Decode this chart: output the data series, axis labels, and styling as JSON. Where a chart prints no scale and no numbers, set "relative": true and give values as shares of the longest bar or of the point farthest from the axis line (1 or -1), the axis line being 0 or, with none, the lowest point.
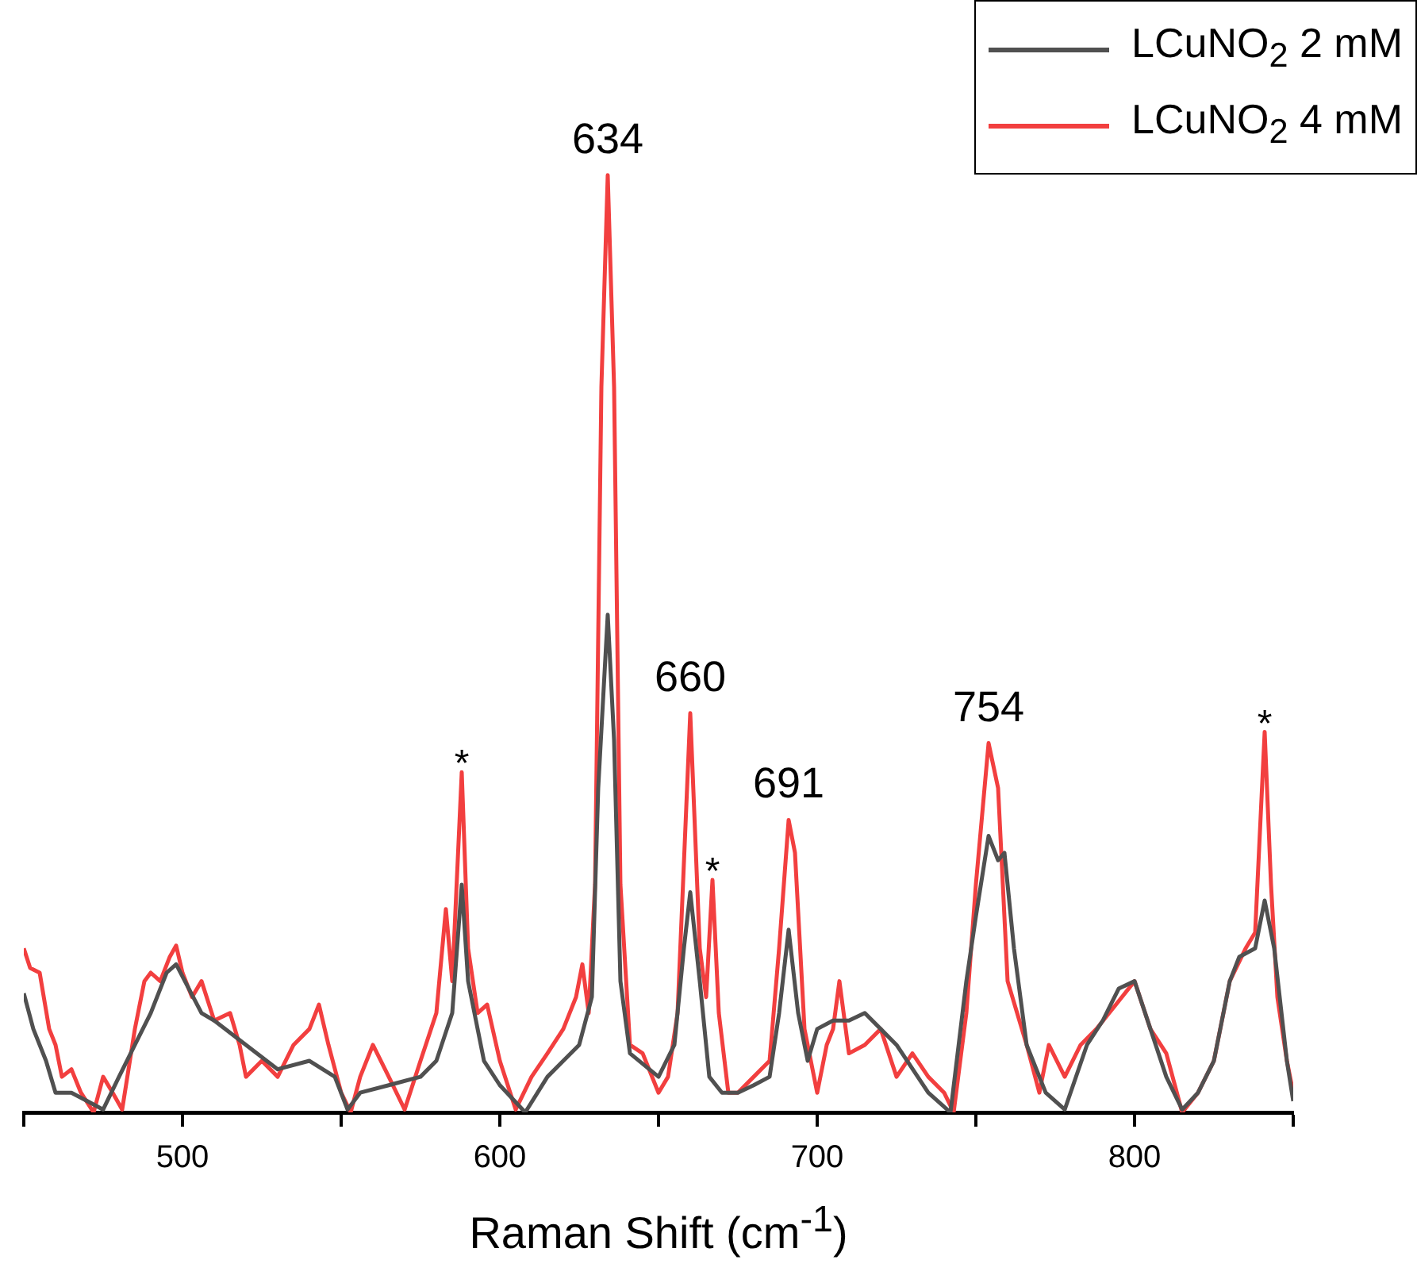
{
  "chart_data": {
    "type": "line",
    "relative": true,
    "xlabel": "Raman Shift (cm$^{-1}$)",
    "xlim": [
      450,
      850
    ],
    "xticks": [
      {
        "value": 450,
        "label": null
      },
      500,
      {
        "value": 550,
        "label": null
      },
      600,
      {
        "value": 650,
        "label": null
      },
      700,
      {
        "value": 750,
        "label": null
      },
      800,
      {
        "value": 850,
        "label": null
      }
    ],
    "grid": false,
    "legend": "top right",
    "marker": "none",
    "line_style": "solid",
    "annotations": [
      {
        "text": "634",
        "x": 634,
        "y": 1.0
      },
      {
        "text": "660",
        "x": 660,
        "y": 0.426
      },
      {
        "text": "691",
        "x": 691,
        "y": 0.312
      },
      {
        "text": "754",
        "x": 754,
        "y": 0.394
      },
      {
        "text": "*",
        "x": 588,
        "y": 0.363
      },
      {
        "text": "*",
        "x": 667,
        "y": 0.248
      },
      {
        "text": "*",
        "x": 841,
        "y": 0.406
      }
    ],
    "series": [
      {
        "name": "LCuNO$_{2}$ 2 mM",
        "color": "#505050",
        "x": [
          450,
          453,
          457,
          460,
          465,
          470,
          475,
          480,
          485,
          490,
          495,
          498,
          502,
          506,
          510,
          520,
          530,
          540,
          548,
          552,
          556,
          565,
          575,
          580,
          585,
          588,
          590,
          595,
          600,
          608,
          615,
          620,
          625,
          629,
          631,
          634,
          636,
          638,
          641,
          650,
          655,
          658,
          660,
          663,
          666,
          670,
          675,
          680,
          685,
          688,
          691,
          694,
          697,
          700,
          705,
          710,
          715,
          720,
          725,
          735,
          742,
          747,
          750,
          754,
          757,
          759,
          762,
          766,
          772,
          778,
          785,
          790,
          795,
          800,
          805,
          810,
          815,
          820,
          825,
          830,
          833,
          838,
          841,
          844,
          848,
          850
        ],
        "values": [
          0.127,
          0.089,
          0.055,
          0.021,
          0.021,
          0.012,
          0.003,
          0.038,
          0.072,
          0.106,
          0.149,
          0.158,
          0.132,
          0.106,
          0.098,
          0.072,
          0.046,
          0.055,
          0.038,
          0.003,
          0.021,
          0.029,
          0.038,
          0.055,
          0.106,
          0.243,
          0.14,
          0.055,
          0.029,
          0,
          0.038,
          0.055,
          0.072,
          0.123,
          0.346,
          0.531,
          0.397,
          0.14,
          0.063,
          0.038,
          0.072,
          0.175,
          0.235,
          0.14,
          0.038,
          0.021,
          0.021,
          0.029,
          0.038,
          0.106,
          0.195,
          0.106,
          0.055,
          0.089,
          0.098,
          0.098,
          0.106,
          0.089,
          0.072,
          0.021,
          0,
          0.14,
          0.209,
          0.295,
          0.269,
          0.277,
          0.175,
          0.072,
          0.021,
          0.003,
          0.072,
          0.098,
          0.132,
          0.14,
          0.089,
          0.038,
          0.003,
          0.021,
          0.055,
          0.14,
          0.166,
          0.175,
          0.226,
          0.175,
          0.055,
          0.012
        ]
      },
      {
        "name": "LCuNO$_{2}$ 4 mM",
        "color": "#f23f3f",
        "x": [
          450,
          452,
          455,
          458,
          460,
          462,
          465,
          468,
          472,
          475,
          478,
          481,
          485,
          488,
          490,
          493,
          496,
          498,
          500,
          503,
          506,
          510,
          515,
          518,
          520,
          525,
          530,
          535,
          540,
          543,
          546,
          550,
          553,
          556,
          560,
          565,
          570,
          575,
          580,
          583,
          585,
          588,
          590,
          593,
          596,
          600,
          605,
          610,
          615,
          620,
          624,
          626,
          628,
          630,
          632,
          634,
          636,
          638,
          641,
          645,
          650,
          653,
          656,
          660,
          663,
          665,
          667,
          669,
          672,
          675,
          680,
          685,
          688,
          691,
          693,
          696,
          700,
          703,
          705,
          707,
          710,
          715,
          720,
          725,
          730,
          735,
          740,
          743,
          747,
          750,
          754,
          757,
          760,
          763,
          766,
          770,
          773,
          778,
          783,
          788,
          792,
          796,
          800,
          805,
          810,
          815,
          820,
          825,
          830,
          835,
          838,
          841,
          843,
          845,
          848,
          850
        ],
        "values": [
          0.175,
          0.154,
          0.149,
          0.089,
          0.072,
          0.038,
          0.046,
          0.021,
          0,
          0.038,
          0.021,
          0.003,
          0.089,
          0.14,
          0.149,
          0.14,
          0.166,
          0.178,
          0.149,
          0.123,
          0.14,
          0.098,
          0.106,
          0.072,
          0.038,
          0.055,
          0.038,
          0.072,
          0.089,
          0.115,
          0.072,
          0.021,
          0,
          0.038,
          0.072,
          0.038,
          0.003,
          0.055,
          0.106,
          0.217,
          0.14,
          0.363,
          0.175,
          0.106,
          0.115,
          0.055,
          0.003,
          0.038,
          0.063,
          0.089,
          0.123,
          0.158,
          0.106,
          0.243,
          0.774,
          1.0,
          0.774,
          0.243,
          0.072,
          0.063,
          0.021,
          0.038,
          0.106,
          0.426,
          0.175,
          0.123,
          0.248,
          0.106,
          0.021,
          0.021,
          0.038,
          0.055,
          0.175,
          0.312,
          0.277,
          0.089,
          0.021,
          0.072,
          0.089,
          0.14,
          0.063,
          0.072,
          0.089,
          0.038,
          0.063,
          0.038,
          0.021,
          0,
          0.106,
          0.243,
          0.394,
          0.346,
          0.14,
          0.106,
          0.072,
          0.021,
          0.072,
          0.038,
          0.072,
          0.089,
          0.106,
          0.123,
          0.14,
          0.089,
          0.063,
          0,
          0.021,
          0.055,
          0.14,
          0.175,
          0.192,
          0.406,
          0.243,
          0.123,
          0.055,
          0.021
        ]
      }
    ]
  }
}
